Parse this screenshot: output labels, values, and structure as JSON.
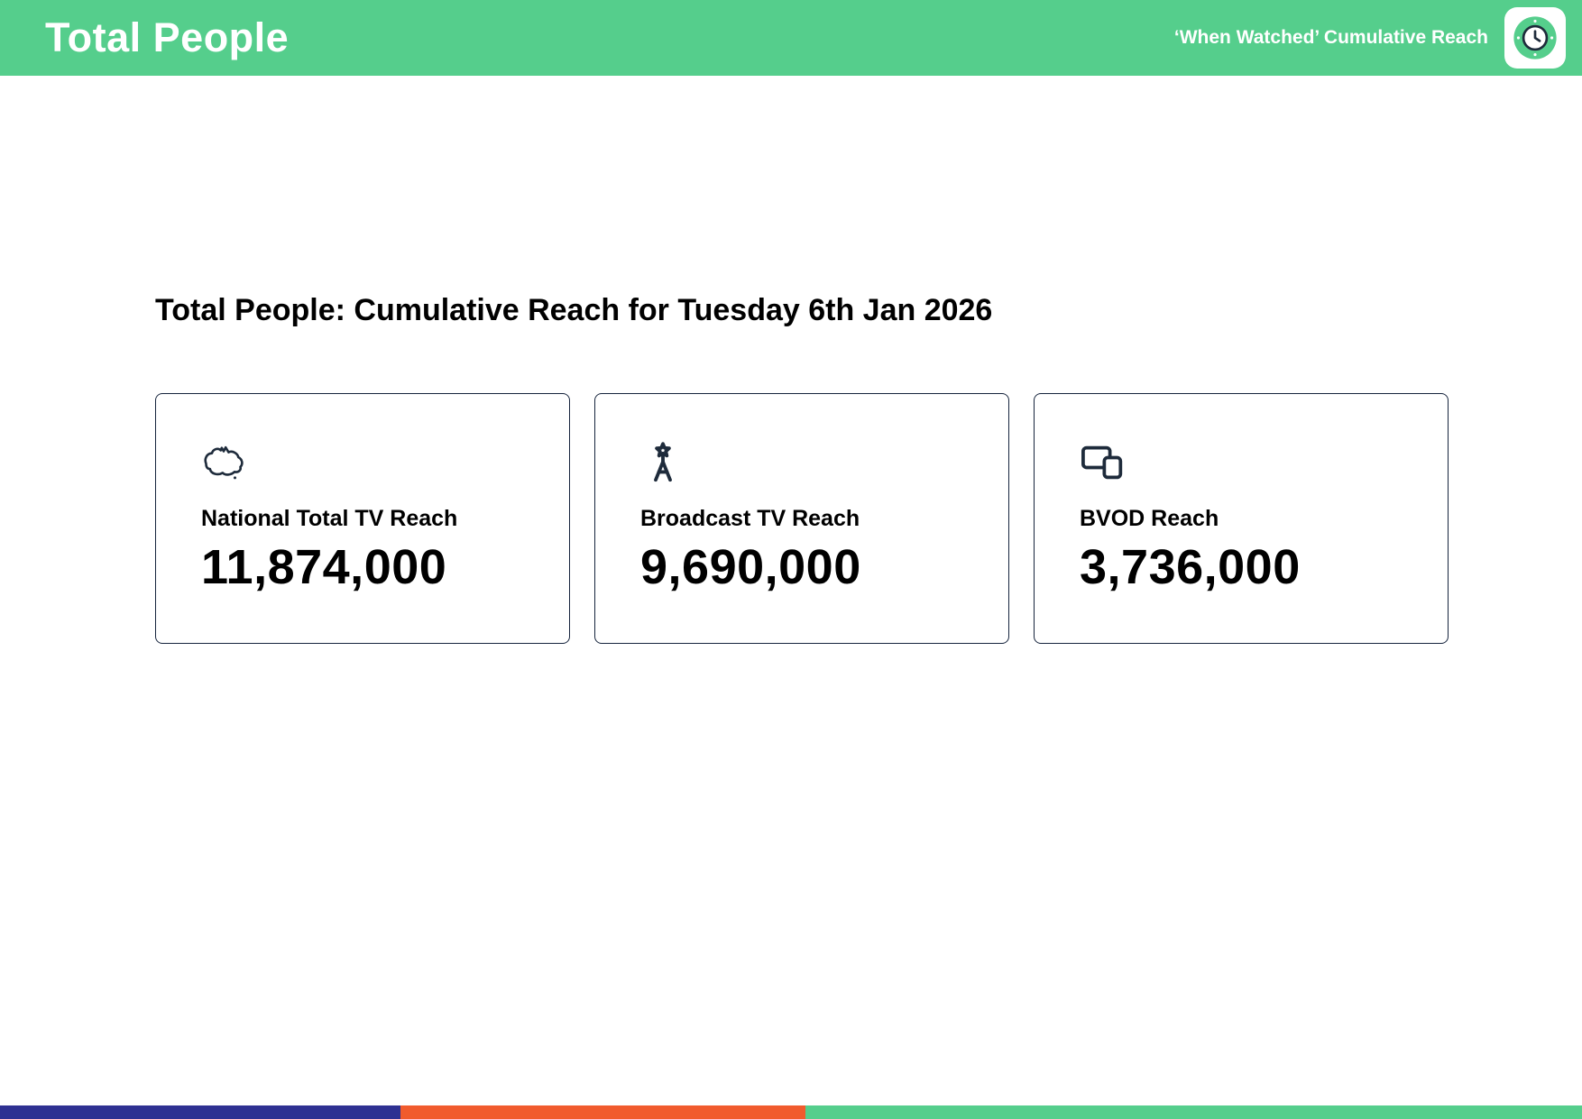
{
  "header": {
    "title": "Total People",
    "tagline": "‘When Watched’ Cumulative Reach",
    "bg_color": "#55CE8C",
    "icon": "clock-icon"
  },
  "main": {
    "heading": "Total People: Cumulative Reach for Tuesday 6th Jan 2026",
    "cards": [
      {
        "icon": "australia-map-icon",
        "label": "National Total TV Reach",
        "value": "11,874,000"
      },
      {
        "icon": "broadcast-tower-icon",
        "label": "Broadcast TV Reach",
        "value": "9,690,000"
      },
      {
        "icon": "devices-icon",
        "label": "BVOD Reach",
        "value": "3,736,000"
      }
    ]
  },
  "footer": {
    "segments": [
      {
        "name": "blue",
        "color": "#2E3192",
        "width_pct": 25.3
      },
      {
        "name": "orange",
        "color": "#F15B2D",
        "width_pct": 25.6
      },
      {
        "name": "green",
        "color": "#55CE8C",
        "width_pct": 49.1
      }
    ]
  },
  "colors": {
    "header_green": "#55CE8C",
    "icon_navy": "#1E2B3B",
    "card_border": "#16243D",
    "text_black": "#000000"
  }
}
